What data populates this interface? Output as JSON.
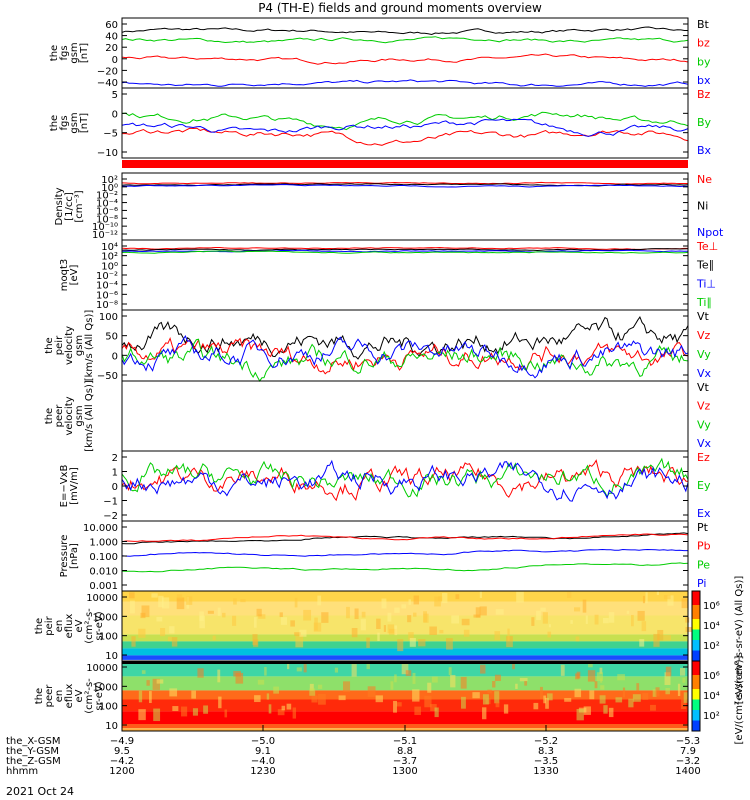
{
  "title": "P4 (TH-E) fields and ground moments overview",
  "date": "2021 Oct 24",
  "colors": {
    "black": "#000000",
    "red": "#ff0000",
    "green": "#00cc00",
    "blue": "#0000ff"
  },
  "chart_data": [
    {
      "type": "line",
      "id": "fgs",
      "ylabel": [
        "the",
        "fgs",
        "gsm",
        "[nT]"
      ],
      "ylim": [
        -40,
        65
      ],
      "ticks": [
        "60",
        "40",
        "20",
        "0",
        "−20",
        "−40"
      ],
      "series": [
        {
          "name": "Bt",
          "color": "black",
          "level": 45
        },
        {
          "name": "bz",
          "color": "red",
          "level": 3
        },
        {
          "name": "by",
          "color": "green",
          "level": 32
        },
        {
          "name": "bx",
          "color": "blue",
          "level": -33
        }
      ]
    },
    {
      "type": "line",
      "id": "fgm",
      "ylabel": [
        "the",
        "fgs",
        "gsm",
        "[nT]"
      ],
      "ylim": [
        -15,
        10
      ],
      "ticks": [
        "5",
        "0",
        "−5",
        "−10"
      ],
      "series": [
        {
          "name": "Bz",
          "color": "red",
          "level": -7
        },
        {
          "name": "By",
          "color": "green",
          "level": -1
        },
        {
          "name": "Bx",
          "color": "blue",
          "level": -4
        }
      ]
    },
    {
      "type": "line",
      "id": "density",
      "ylabel": [
        "Density",
        "[1/cc]",
        "[cm⁻³]"
      ],
      "ticks": [
        "10²",
        "10⁰",
        "10⁻²",
        "10⁻⁴",
        "10⁻⁶",
        "10⁻⁸",
        "10⁻¹⁰",
        "10⁻¹²"
      ],
      "series": [
        {
          "name": "Ne",
          "color": "red"
        },
        {
          "name": "Ni",
          "color": "black"
        },
        {
          "name": "Npot",
          "color": "blue"
        }
      ]
    },
    {
      "type": "line",
      "id": "temp",
      "ylabel": [
        "moqt3",
        "[eV]"
      ],
      "ticks": [
        "10⁴",
        "10²",
        "10⁰",
        "10⁻²",
        "10⁻⁴",
        "10⁻⁶",
        "10⁻⁸"
      ],
      "series": [
        {
          "name": "Te⊥",
          "color": "red"
        },
        {
          "name": "Te∥",
          "color": "black"
        },
        {
          "name": "Ti⊥",
          "color": "blue"
        },
        {
          "name": "Ti∥",
          "color": "green"
        }
      ]
    },
    {
      "type": "line",
      "id": "peir_vel",
      "ylabel": [
        "the",
        "peir",
        "velocity",
        "gsm",
        "[km/s (All Qs)]"
      ],
      "ylim": [
        -50,
        100
      ],
      "ticks": [
        "100",
        "50",
        "0",
        "−50"
      ],
      "series": [
        {
          "name": "Vt",
          "color": "black"
        },
        {
          "name": "Vz",
          "color": "red"
        },
        {
          "name": "Vy",
          "color": "green"
        },
        {
          "name": "Vx",
          "color": "blue"
        }
      ]
    },
    {
      "type": "line",
      "id": "peer_vel",
      "ylabel": [
        "the",
        "peer",
        "velocity",
        "gsm",
        "[km/s (All Qs)]"
      ],
      "ticks": [],
      "series": [
        {
          "name": "Vt",
          "color": "black"
        },
        {
          "name": "Vz",
          "color": "red"
        },
        {
          "name": "Vy",
          "color": "green"
        },
        {
          "name": "Vx",
          "color": "blue"
        }
      ]
    },
    {
      "type": "line",
      "id": "exb",
      "ylabel": [
        "E=−VxB",
        "[mV/m]"
      ],
      "ylim": [
        -3,
        3
      ],
      "ticks": [
        "2",
        "1",
        "0",
        "−1",
        "−2"
      ],
      "series": [
        {
          "name": "Ez",
          "color": "red"
        },
        {
          "name": "Ey",
          "color": "green"
        },
        {
          "name": "Ex",
          "color": "blue"
        }
      ]
    },
    {
      "type": "line",
      "id": "pressure",
      "ylabel": [
        "Pressure",
        "[nPa]"
      ],
      "ticks": [
        "10.000",
        "1.000",
        "0.100",
        "0.010",
        "0.001"
      ],
      "series": [
        {
          "name": "Pt",
          "color": "black"
        },
        {
          "name": "Pb",
          "color": "red"
        },
        {
          "name": "Pe",
          "color": "green"
        },
        {
          "name": "Pi",
          "color": "blue"
        }
      ]
    },
    {
      "type": "heatmap",
      "id": "peir_en",
      "ylabel": [
        "the",
        "peir",
        "en",
        "eflux",
        "eV",
        "(cm²-s-",
        "sr-eV)"
      ],
      "ticks": [
        "10000",
        "1000",
        "100",
        "10"
      ]
    },
    {
      "type": "heatmap",
      "id": "peer_en",
      "ylabel": [
        "the",
        "peer",
        "en",
        "eflux",
        "eV",
        "(cm²-s-",
        "sr-eV)"
      ],
      "ticks": [
        "10000",
        "1000",
        "100",
        "10"
      ]
    }
  ],
  "colorbar": {
    "label": "[eV/(cm²-s-sr-eV)]",
    "label2": "[eV/(cm²-s-sr-eV) (All Qs)]",
    "ticks": [
      "10⁶",
      "10⁴",
      "10²"
    ]
  },
  "xaxis": {
    "rows": [
      {
        "label": "the_X-GSM",
        "values": [
          "−4.9",
          "−5.0",
          "−5.1",
          "−5.2",
          "−5.3"
        ]
      },
      {
        "label": "the_Y-GSM",
        "values": [
          "9.5",
          "9.1",
          "8.8",
          "8.3",
          "7.9"
        ]
      },
      {
        "label": "the_Z-GSM",
        "values": [
          "−4.2",
          "−4.0",
          "−3.7",
          "−3.5",
          "−3.2"
        ]
      },
      {
        "label": "hhmm",
        "values": [
          "1200",
          "1230",
          "1300",
          "1330",
          "1400"
        ]
      }
    ]
  }
}
